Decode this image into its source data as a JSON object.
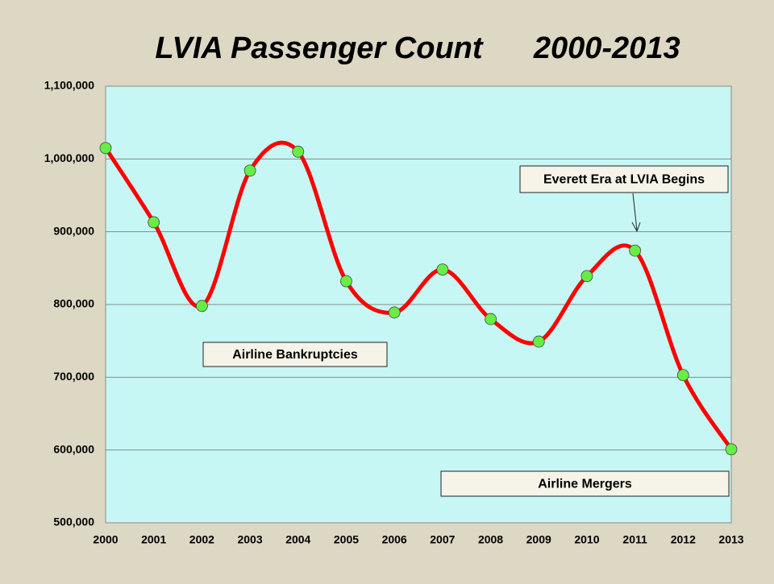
{
  "chart_data": {
    "type": "line",
    "title": "LVIA Passenger Count      2000-2013",
    "categories": [
      "2000",
      "2001",
      "2002",
      "2003",
      "2004",
      "2005",
      "2006",
      "2007",
      "2008",
      "2009",
      "2010",
      "2011",
      "2012",
      "2013"
    ],
    "values": [
      1015000,
      913000,
      798000,
      984000,
      1010000,
      832000,
      789000,
      848000,
      780000,
      749000,
      839000,
      874000,
      703000,
      601000
    ],
    "color": "#ff0000",
    "marker_color": "#66ee44",
    "ylim": [
      500000,
      1100000
    ],
    "yticks": [
      {
        "value": 500000,
        "label": "500,000"
      },
      {
        "value": 600000,
        "label": "600,000"
      },
      {
        "value": 700000,
        "label": "700,000"
      },
      {
        "value": 800000,
        "label": "800,000"
      },
      {
        "value": 900000,
        "label": "900,000"
      },
      {
        "value": 1000000,
        "label": "1,000,000"
      },
      {
        "value": 1100000,
        "label": "1,100,000"
      }
    ],
    "grid": true,
    "annotations": [
      "Airline Bankruptcies",
      "Everett Era at LVIA Begins",
      "Airline Mergers"
    ]
  }
}
